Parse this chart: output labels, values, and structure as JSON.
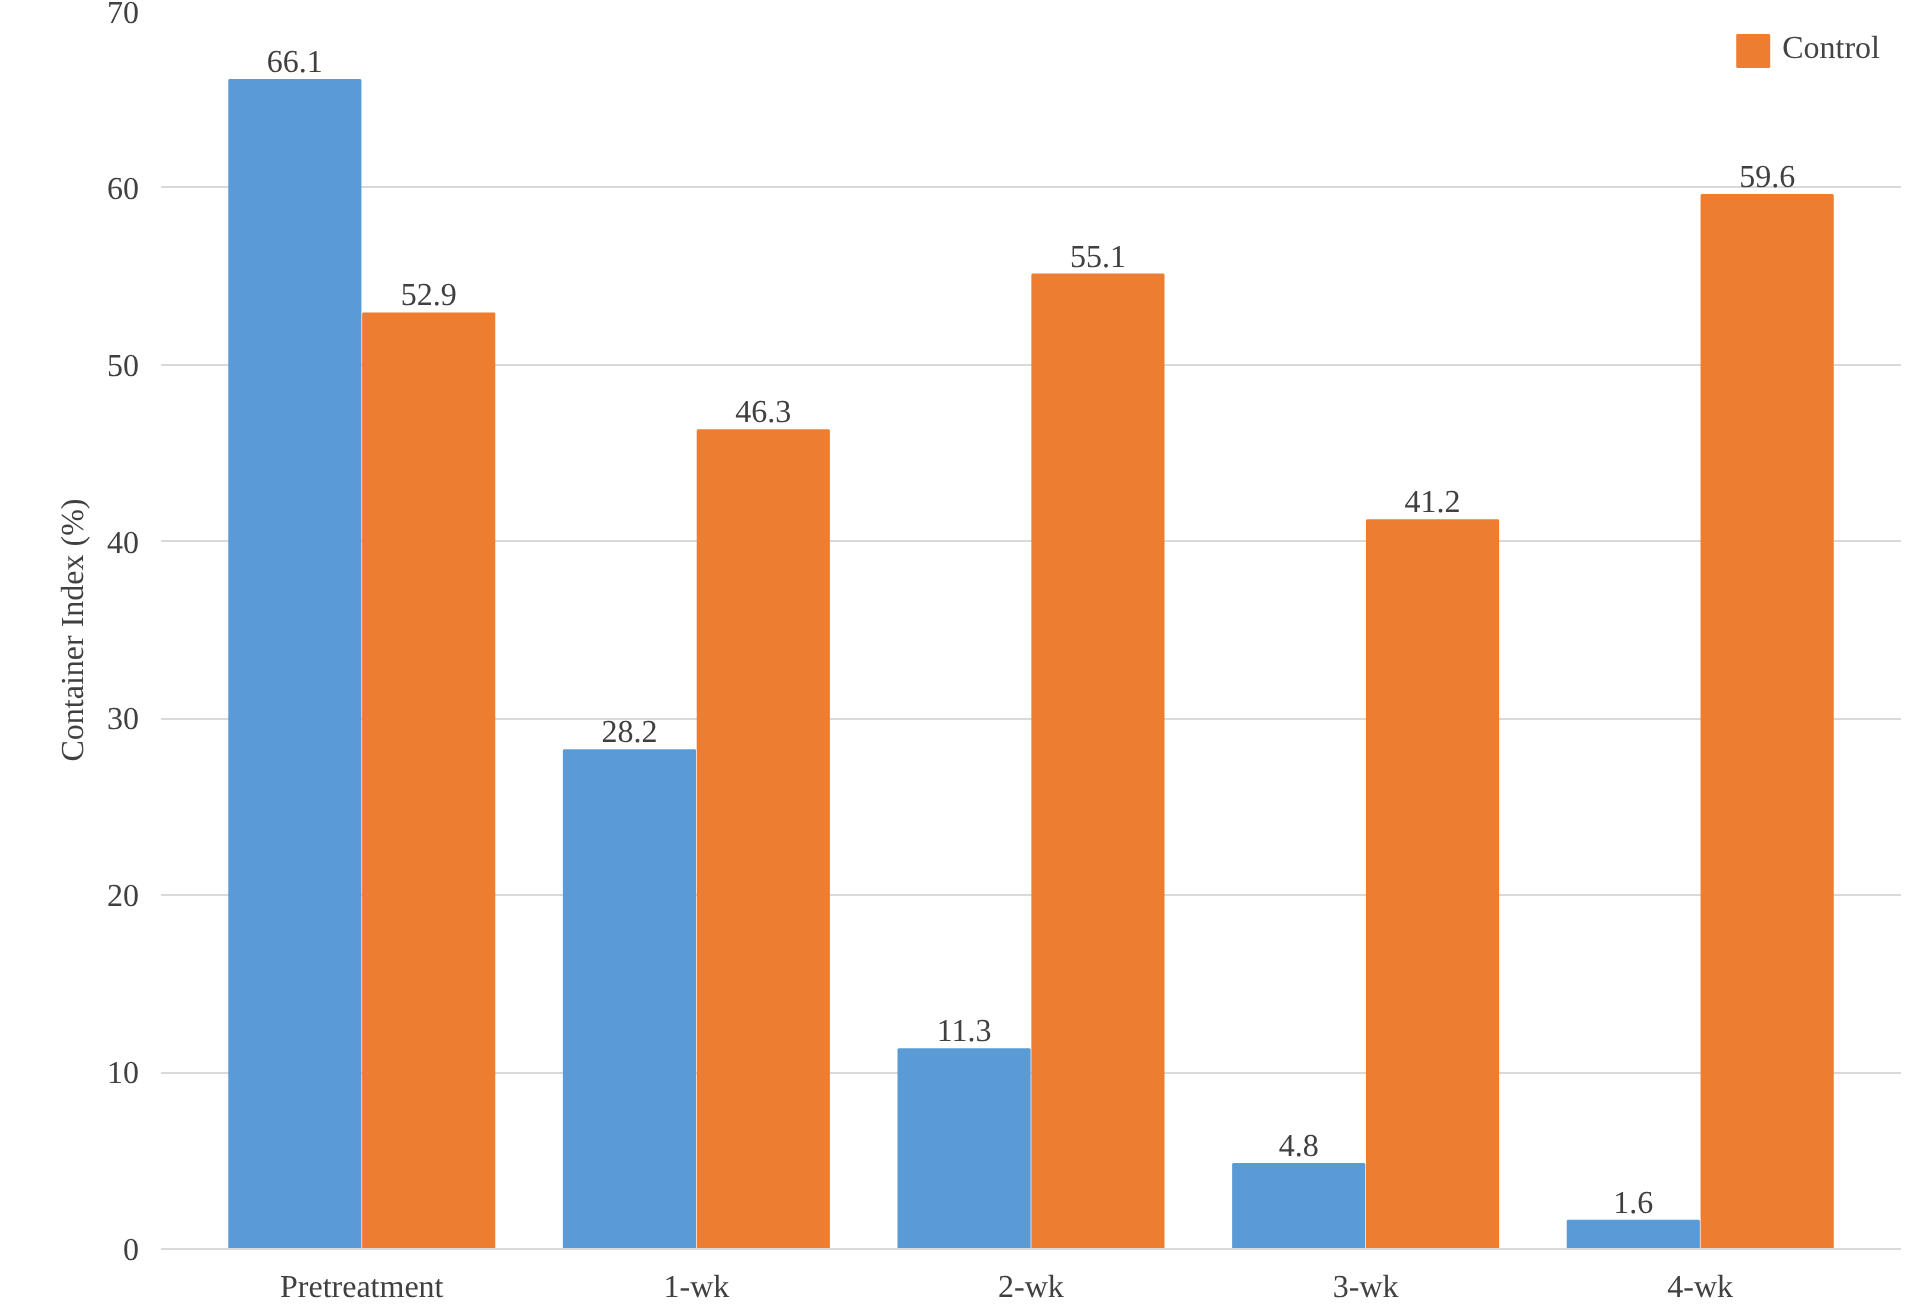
{
  "chart_data": {
    "type": "bar",
    "ylabel": "Container Index (%)",
    "categories": [
      "Pretreatment",
      "1-wk",
      "2-wk",
      "3-wk",
      "4-wk"
    ],
    "series": [
      {
        "color": "#5b9bd5",
        "values": [
          66.1,
          28.2,
          11.3,
          4.8,
          1.6
        ]
      },
      {
        "name": "Control",
        "color": "#ed7d31",
        "values": [
          52.9,
          46.3,
          55.1,
          41.2,
          59.6
        ]
      }
    ],
    "ylim": [
      0,
      70
    ],
    "yticks": [
      0,
      10,
      20,
      30,
      40,
      50,
      60,
      70
    ],
    "grid": "y",
    "legend": "top right",
    "data_labels": true
  }
}
